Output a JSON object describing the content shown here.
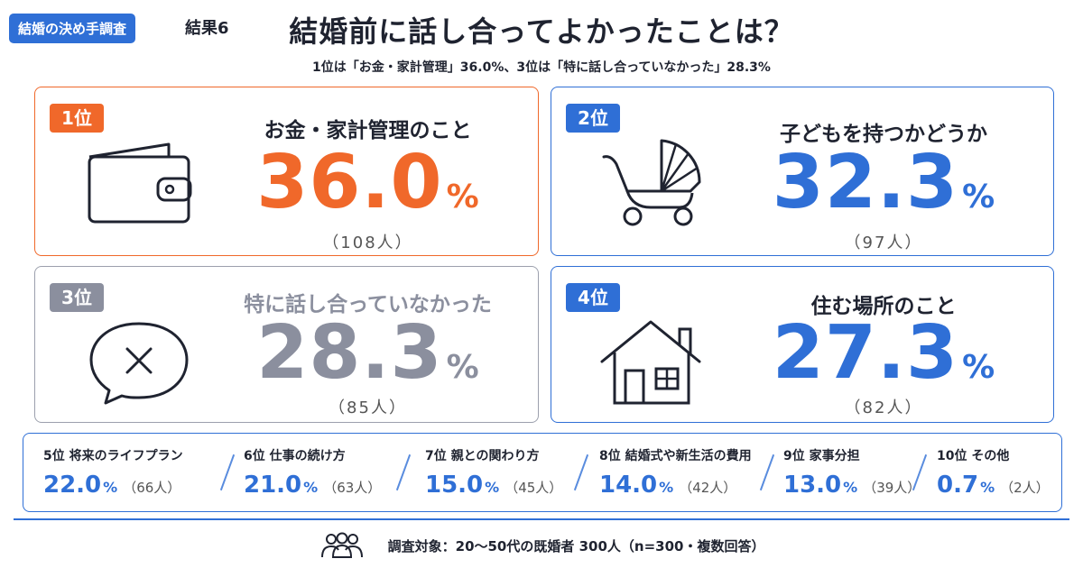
{
  "header": {
    "tag": "結婚の決め手調査",
    "subtag": "結果6",
    "title": "結婚前に話し合ってよかったことは？",
    "subtitle": "1位は「お金・家計管理」36.0%、3位は「特に話し合っていなかった」28.3%"
  },
  "colors": {
    "rank1": "#f0682a",
    "blue": "#2f6fd6",
    "gray": "#8b8f9e"
  },
  "top_ranks": [
    {
      "badge": "1位",
      "label": "お金・家計管理のこと",
      "value": "36.0",
      "unit": "%",
      "count": "（108人）",
      "icon": "wallet-icon"
    },
    {
      "badge": "2位",
      "label": "子どもを持つかどうか",
      "value": "32.3",
      "unit": "%",
      "count": "（97人）",
      "icon": "baby-stroller-icon"
    },
    {
      "badge": "3位",
      "label": "特に話し合っていなかった",
      "value": "28.3",
      "unit": "%",
      "count": "（85人）",
      "icon": "speech-bubble-x-icon"
    },
    {
      "badge": "4位",
      "label": "住む場所のこと",
      "value": "27.3",
      "unit": "%",
      "count": "（82人）",
      "icon": "house-icon"
    }
  ],
  "other_ranks": [
    {
      "name": "5位 将来のライフプラン",
      "value": "22.0",
      "unit": "%",
      "count": "（66人）"
    },
    {
      "name": "6位 仕事の続け方",
      "value": "21.0",
      "unit": "%",
      "count": "（63人）"
    },
    {
      "name": "7位 親との関わり方",
      "value": "15.0",
      "unit": "%",
      "count": "（45人）"
    },
    {
      "name": "8位 結婚式や新生活の費用",
      "value": "14.0",
      "unit": "%",
      "count": "（42人）"
    },
    {
      "name": "9位 家事分担",
      "value": "13.0",
      "unit": "%",
      "count": "（39人）"
    },
    {
      "name": "10位 その他",
      "value": "0.7",
      "unit": "%",
      "count": "（2人）"
    }
  ],
  "footer": {
    "text": "調査対象：20～50代の既婚者 300人（n=300・複数回答）",
    "icon": "people-icon"
  },
  "chart_data": {
    "type": "table",
    "title": "結婚前に話し合ってよかったことは？",
    "unit": "%",
    "categories": [
      "お金・家計管理のこと",
      "子どもを持つかどうか",
      "特に話し合っていなかった",
      "住む場所のこと",
      "将来のライフプラン",
      "仕事の続け方",
      "親との関わり方",
      "結婚式や新生活の費用",
      "家事分担",
      "その他"
    ],
    "values": [
      36.0,
      32.3,
      28.3,
      27.3,
      22.0,
      21.0,
      15.0,
      14.0,
      13.0,
      0.7
    ],
    "counts": [
      108,
      97,
      85,
      82,
      66,
      63,
      45,
      42,
      39,
      2
    ]
  }
}
